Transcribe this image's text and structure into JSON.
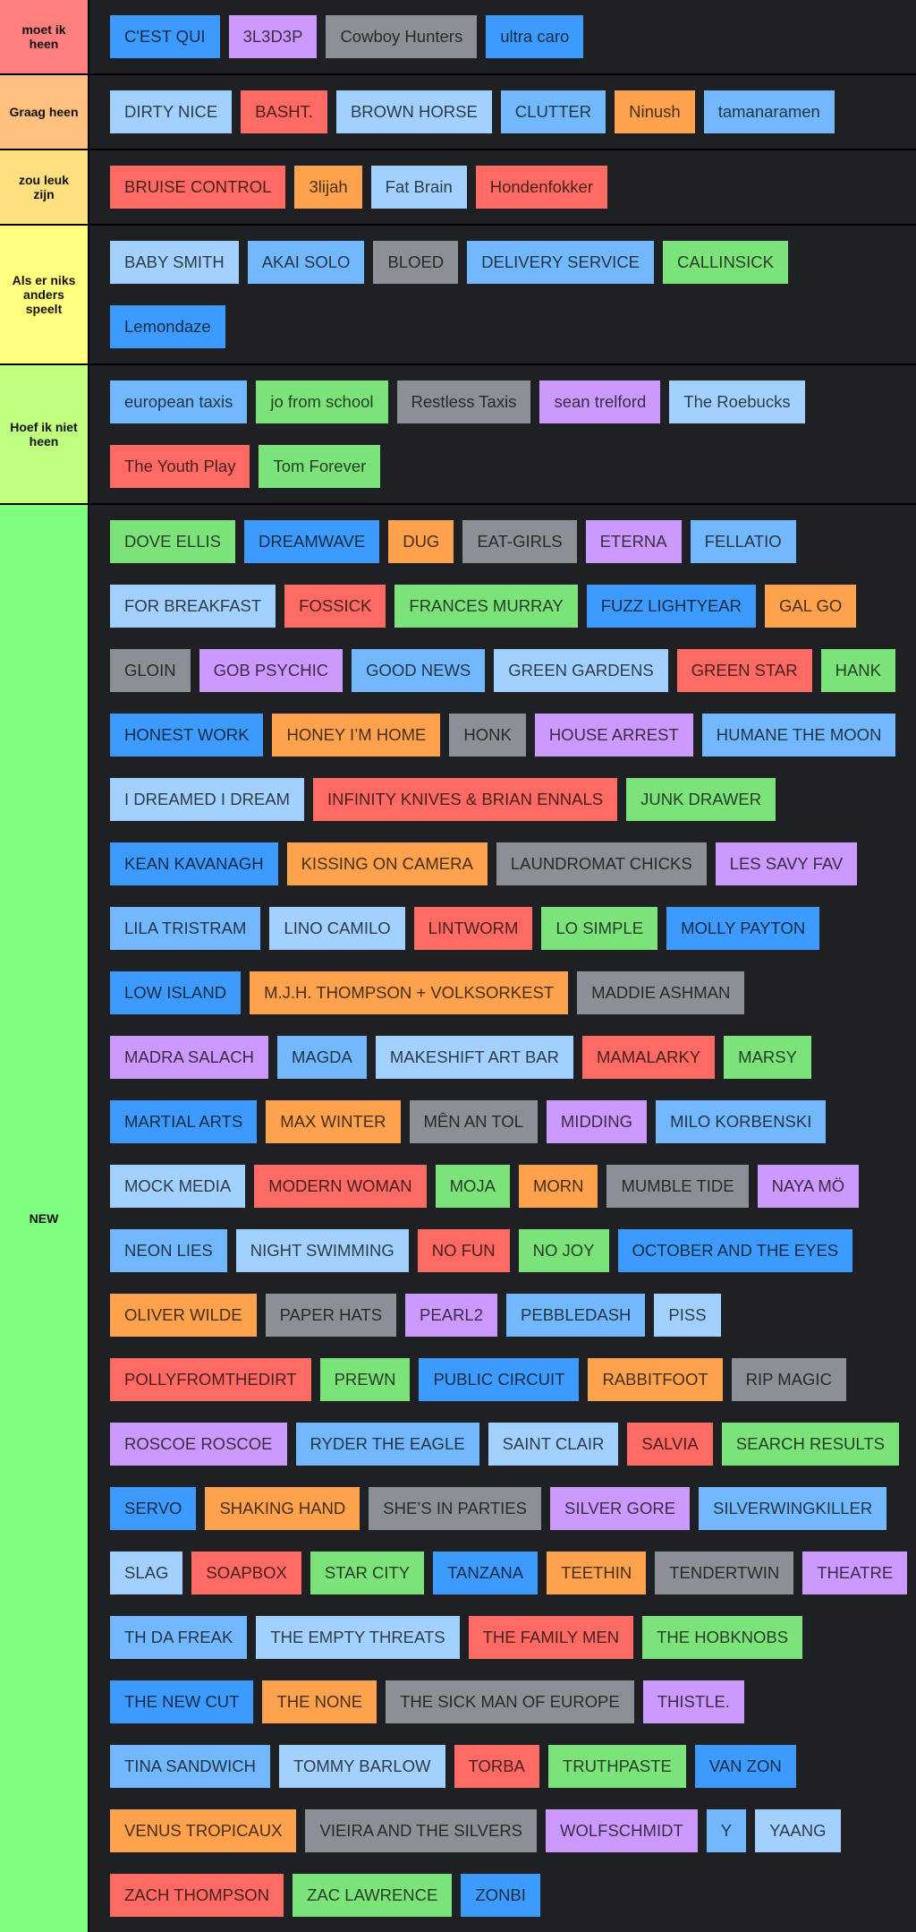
{
  "tiers": [
    {
      "label": "moet ik heen",
      "color": "#ff7f7f",
      "items": [
        "C'EST QUI",
        "3L3D3P",
        "Cowboy Hunters",
        "ultra caro"
      ],
      "colors": [
        "#3d9bff",
        "#cc99ff",
        "#8b9096",
        "#3d9bff"
      ]
    },
    {
      "label": "Graag heen",
      "color": "#ffbf7f",
      "items": [
        "DIRTY NICE",
        "BASHT.",
        "BROWN HORSE",
        "CLUTTER",
        "Ninush",
        "tamanaramen"
      ],
      "colors": [
        "#a3d1ff",
        "#ff6b64",
        "#a3d1ff",
        "#72b8ff",
        "#ffa24d",
        "#72b8ff"
      ]
    },
    {
      "label": "zou leuk zijn",
      "color": "#ffdf7f",
      "items": [
        "BRUISE CONTROL",
        "3lijah",
        "Fat Brain",
        "Hondenfokker"
      ],
      "colors": [
        "#ff6b64",
        "#ffa24d",
        "#a3d1ff",
        "#ff6b64"
      ]
    },
    {
      "label": "Als er niks anders speelt",
      "color": "#ffff7f",
      "items": [
        "BABY SMITH",
        "AKAI SOLO",
        "BLOED",
        "DELIVERY SERVICE",
        "CALLINSICK",
        "Lemondaze"
      ],
      "colors": [
        "#a3d1ff",
        "#72b8ff",
        "#8b9096",
        "#72b8ff",
        "#7ce27a",
        "#3d9bff"
      ]
    },
    {
      "label": "Hoef ik niet heen",
      "color": "#bfff7f",
      "items": [
        "european taxis",
        "jo from school",
        "Restless Taxis",
        "sean trelford",
        "The Roebucks",
        "The Youth Play",
        "Tom Forever"
      ],
      "colors": [
        "#72b8ff",
        "#7ce27a",
        "#8b9096",
        "#cc99ff",
        "#a3d1ff",
        "#ff6b64",
        "#7ce27a"
      ]
    },
    {
      "label": "NEW",
      "color": "#7fff7f",
      "items": [
        "DOVE ELLIS",
        "DREAMWAVE",
        "DUG",
        "EAT-GIRLS",
        "ETERNA",
        "FELLATIO",
        "FOR BREAKFAST",
        "FOSSICK",
        "FRANCES MURRAY",
        "FUZZ LIGHTYEAR",
        "GAL GO",
        "GLOIN",
        "GOB PSYCHIC",
        "GOOD NEWS",
        "GREEN GARDENS",
        "GREEN STAR",
        "HANK",
        "HONEST WORK",
        "HONEY I’M HOME",
        "HONK",
        "HOUSE ARREST",
        "HUMANE THE MOON",
        "I DREAMED I DREAM",
        "INFINITY KNIVES & BRIAN ENNALS",
        "JUNK DRAWER",
        "KEAN KAVANAGH",
        "KISSING ON CAMERA",
        "LAUNDROMAT CHICKS",
        "LES SAVY FAV",
        "LILA TRISTRAM",
        "LINO CAMILO",
        "LINTWORM",
        "LO SIMPLE",
        "MOLLY PAYTON",
        "LOW ISLAND",
        "M.J.H. THOMPSON + VOLKSORKEST",
        "MADDIE ASHMAN",
        "MADRA SALACH",
        "MAGDA",
        "MAKESHIFT ART BAR",
        "MAMALARKY",
        "MARSY",
        "MARTIAL ARTS",
        "MAX WINTER",
        "MÊN AN TOL",
        "MIDDING",
        "MILO KORBENSKI",
        "MOCK MEDIA",
        "MODERN WOMAN",
        "MOJA",
        "MORN",
        "MUMBLE TIDE",
        "NAYA MÖ",
        "NEON LIES",
        "NIGHT SWIMMING",
        "NO FUN",
        "NO JOY",
        "OCTOBER AND THE EYES",
        "OLIVER WILDE",
        "PAPER HATS",
        "PEARL2",
        "PEBBLEDASH",
        "PISS",
        "POLLYFROMTHEDIRT",
        "PREWN",
        "PUBLIC CIRCUIT",
        "RABBITFOOT",
        "RIP MAGIC",
        "ROSCOE ROSCOE",
        "RYDER THE EAGLE",
        "SAINT CLAIR",
        "SALVIA",
        "SEARCH RESULTS",
        "SERVO",
        "SHAKING HAND",
        "SHE’S IN PARTIES",
        "SILVER GORE",
        "SILVERWINGKILLER",
        "SLAG",
        "SOAPBOX",
        "STAR CITY",
        "TANZANA",
        "TEETHIN",
        "TENDERTWIN",
        "THEATRE",
        "TH DA FREAK",
        "THE EMPTY THREATS",
        "THE FAMILY MEN",
        "THE HOBKNOBS",
        "THE NEW CUT",
        "THE NONE",
        "THE SICK MAN OF EUROPE",
        "THISTLE.",
        "TINA SANDWICH",
        "TOMMY BARLOW",
        "TORBA",
        "TRUTHPASTE",
        "VAN ZON",
        "VENUS TROPICAUX",
        "VIEIRA AND THE SILVERS",
        "WOLFSCHMIDT",
        "Y",
        "YAANG",
        "ZACH THOMPSON",
        "ZAC LAWRENCE",
        "ZONBI"
      ],
      "colors": [
        "#7ce27a",
        "#3d9bff",
        "#ffa24d",
        "#8b9096",
        "#cc99ff",
        "#72b8ff",
        "#a3d1ff",
        "#ff6b64",
        "#7ce27a",
        "#3d9bff",
        "#ffa24d",
        "#8b9096",
        "#cc99ff",
        "#72b8ff",
        "#a3d1ff",
        "#ff6b64",
        "#7ce27a",
        "#3d9bff",
        "#ffa24d",
        "#8b9096",
        "#cc99ff",
        "#72b8ff",
        "#a3d1ff",
        "#ff6b64",
        "#7ce27a",
        "#3d9bff",
        "#ffa24d",
        "#8b9096",
        "#cc99ff",
        "#72b8ff",
        "#a3d1ff",
        "#ff6b64",
        "#7ce27a",
        "#3d9bff",
        "#3d9bff",
        "#ffa24d",
        "#8b9096",
        "#cc99ff",
        "#72b8ff",
        "#a3d1ff",
        "#ff6b64",
        "#7ce27a",
        "#3d9bff",
        "#ffa24d",
        "#8b9096",
        "#cc99ff",
        "#72b8ff",
        "#a3d1ff",
        "#ff6b64",
        "#7ce27a",
        "#ffa24d",
        "#8b9096",
        "#cc99ff",
        "#72b8ff",
        "#a3d1ff",
        "#ff6b64",
        "#7ce27a",
        "#3d9bff",
        "#ffa24d",
        "#8b9096",
        "#cc99ff",
        "#72b8ff",
        "#a3d1ff",
        "#ff6b64",
        "#7ce27a",
        "#3d9bff",
        "#ffa24d",
        "#8b9096",
        "#cc99ff",
        "#72b8ff",
        "#a3d1ff",
        "#ff6b64",
        "#7ce27a",
        "#3d9bff",
        "#ffa24d",
        "#8b9096",
        "#cc99ff",
        "#72b8ff",
        "#a3d1ff",
        "#ff6b64",
        "#7ce27a",
        "#3d9bff",
        "#ffa24d",
        "#8b9096",
        "#cc99ff",
        "#72b8ff",
        "#a3d1ff",
        "#ff6b64",
        "#7ce27a",
        "#3d9bff",
        "#ffa24d",
        "#8b9096",
        "#cc99ff",
        "#72b8ff",
        "#a3d1ff",
        "#ff6b64",
        "#7ce27a",
        "#3d9bff",
        "#ffa24d",
        "#8b9096",
        "#cc99ff",
        "#72b8ff",
        "#a3d1ff",
        "#ff6b64",
        "#7ce27a",
        "#3d9bff"
      ]
    }
  ]
}
